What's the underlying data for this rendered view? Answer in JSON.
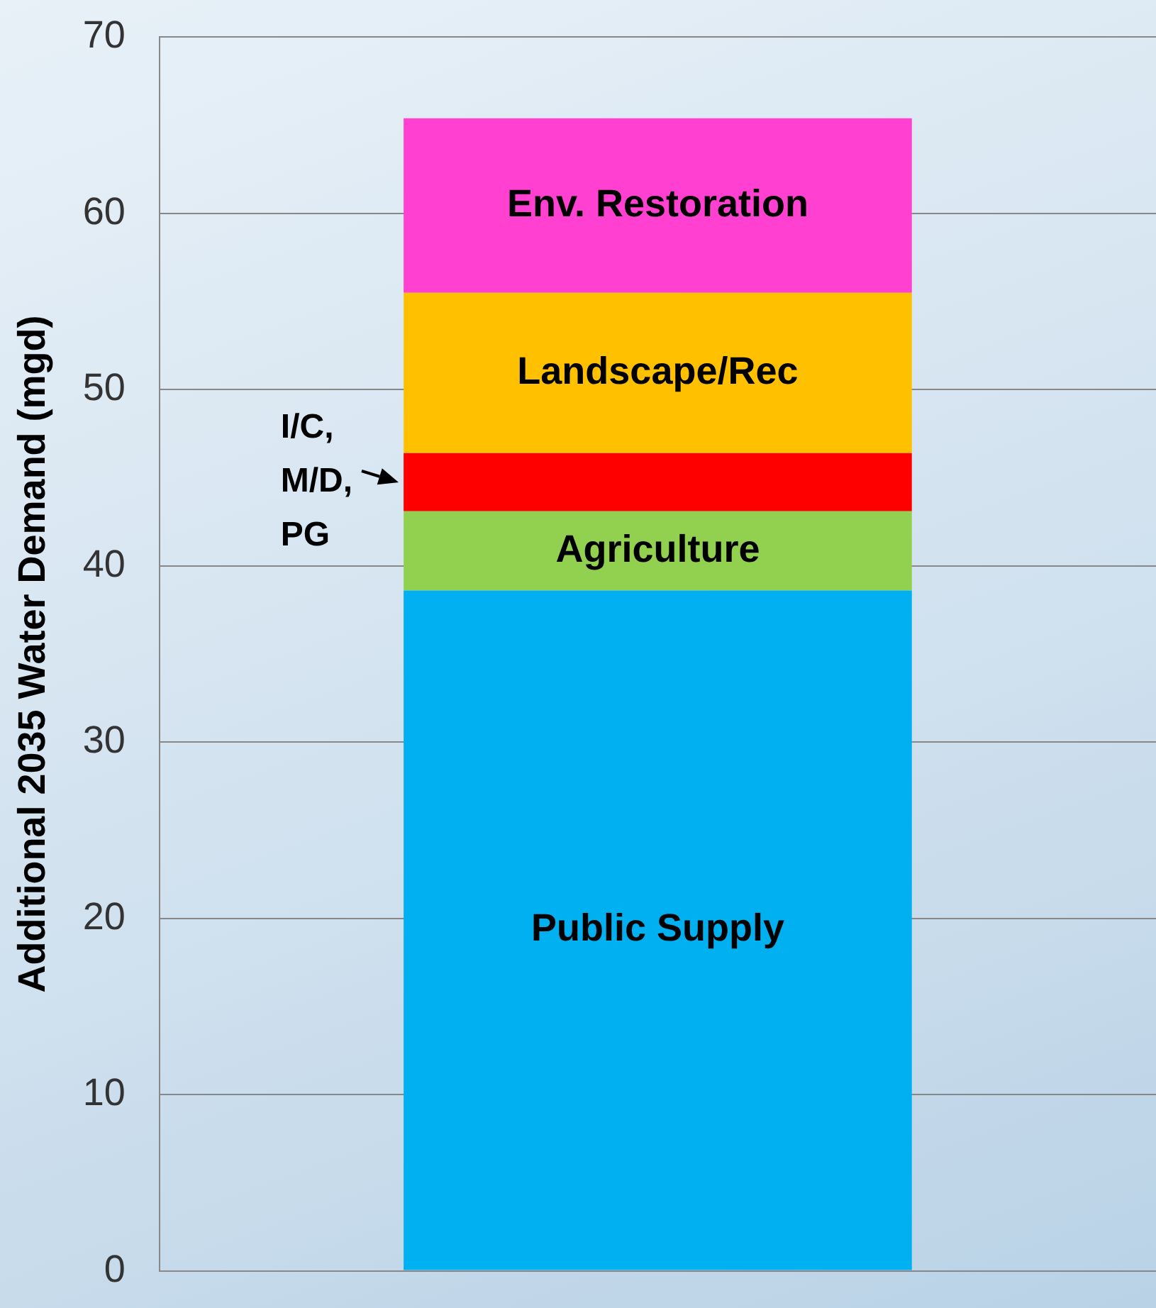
{
  "chart_data": {
    "type": "bar",
    "ylabel": "Additional 2035 Water Demand (mgd)",
    "categories": [
      null
    ],
    "stacked": true,
    "series": [
      {
        "name": "Public Supply",
        "color": "#00b0f0",
        "values": [
          38.6
        ]
      },
      {
        "name": "Agriculture",
        "color": "#92d050",
        "values": [
          4.5
        ]
      },
      {
        "name": "I/C, M/D, PG",
        "color": "#ff0000",
        "values": [
          3.3
        ]
      },
      {
        "name": "Landscape/Rec",
        "color": "#ffc000",
        "values": [
          9.1
        ]
      },
      {
        "name": "Env. Restoration",
        "color": "#ff40d0",
        "values": [
          9.9
        ]
      }
    ],
    "ylim": [
      0,
      70
    ],
    "yticks": [
      0,
      10,
      20,
      30,
      40,
      50,
      60,
      70
    ],
    "grid": "y",
    "legend": false
  }
}
